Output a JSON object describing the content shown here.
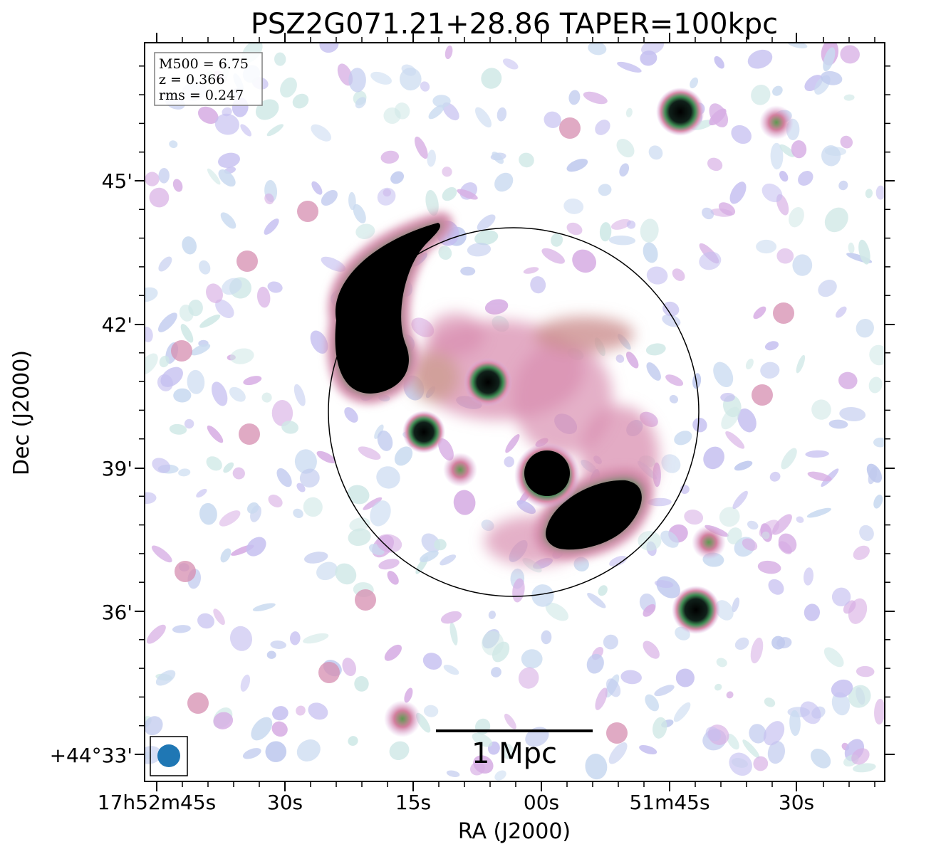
{
  "chart_data": {
    "type": "heatmap",
    "title": "PSZ2G071.21+28.86 TAPER=100kpc",
    "xlabel": "RA (J2000)",
    "ylabel": "Dec (J2000)",
    "colormap": "cubehelix_r",
    "x_ticks": [
      "17h52m45s",
      "30s",
      "15s",
      "00s",
      "51m45s",
      "30s"
    ],
    "y_ticks": [
      "45'",
      "42'",
      "39'",
      "36'",
      "+44°33'"
    ],
    "info_box": {
      "m500": "M500 = 6.75",
      "z": "z = 0.366",
      "rms": "rms = 0.247"
    },
    "scale_bar_label": "1 Mpc",
    "circle": "R500",
    "beam_color": "#1f77b4",
    "sources": [
      {
        "id": "relic-nw",
        "kind": "extended",
        "level": 1.0
      },
      {
        "id": "relic-se",
        "kind": "extended",
        "level": 1.0
      },
      {
        "id": "core-source",
        "kind": "compact",
        "level": 1.0
      },
      {
        "id": "center-source",
        "kind": "compact",
        "level": 0.95
      },
      {
        "id": "west-source",
        "kind": "compact",
        "level": 0.9
      },
      {
        "id": "ne-source-1",
        "kind": "compact",
        "level": 0.95
      },
      {
        "id": "ne-source-2",
        "kind": "compact",
        "level": 0.7
      },
      {
        "id": "e-source-1",
        "kind": "compact",
        "level": 0.95
      },
      {
        "id": "e-source-2",
        "kind": "compact",
        "level": 0.65
      },
      {
        "id": "s-source",
        "kind": "compact",
        "level": 0.7
      },
      {
        "id": "center-south",
        "kind": "compact",
        "level": 0.6
      }
    ]
  }
}
